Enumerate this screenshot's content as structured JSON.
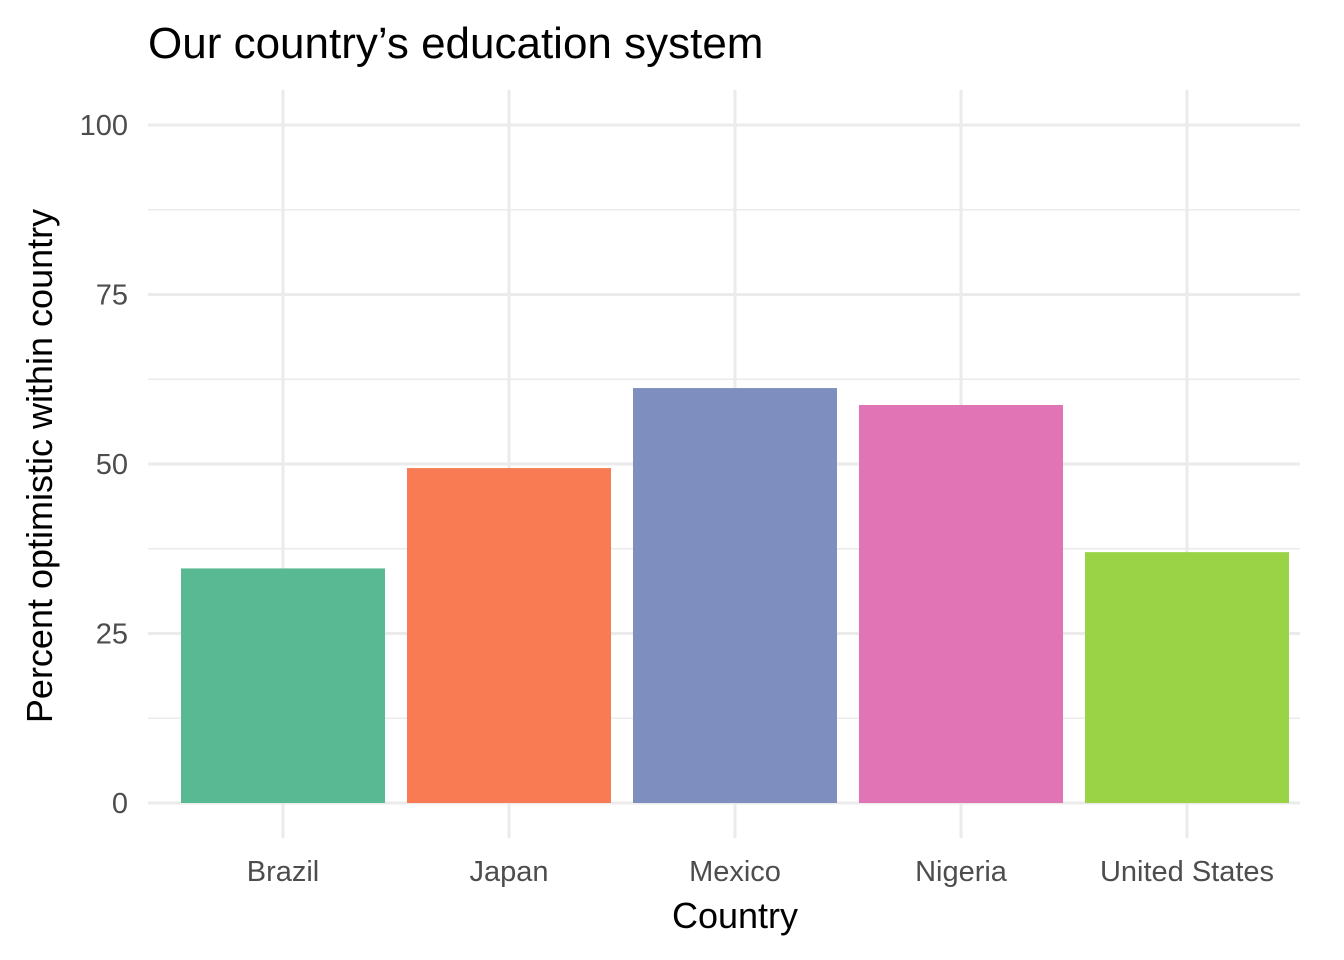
{
  "chart_data": {
    "type": "bar",
    "title": "Our country’s education system",
    "xlabel": "Country",
    "ylabel": "Percent optimistic within country",
    "categories": [
      "Brazil",
      "Japan",
      "Mexico",
      "Nigeria",
      "United States"
    ],
    "values": [
      34.6,
      49.4,
      61.2,
      58.7,
      37.0
    ],
    "colors": [
      "#58B993",
      "#F87B53",
      "#7E8FBF",
      "#E074B5",
      "#9AD346"
    ],
    "ylim": [
      0,
      100
    ],
    "yticks": [
      0,
      25,
      50,
      75,
      100
    ],
    "grid": true,
    "legend": "none"
  }
}
